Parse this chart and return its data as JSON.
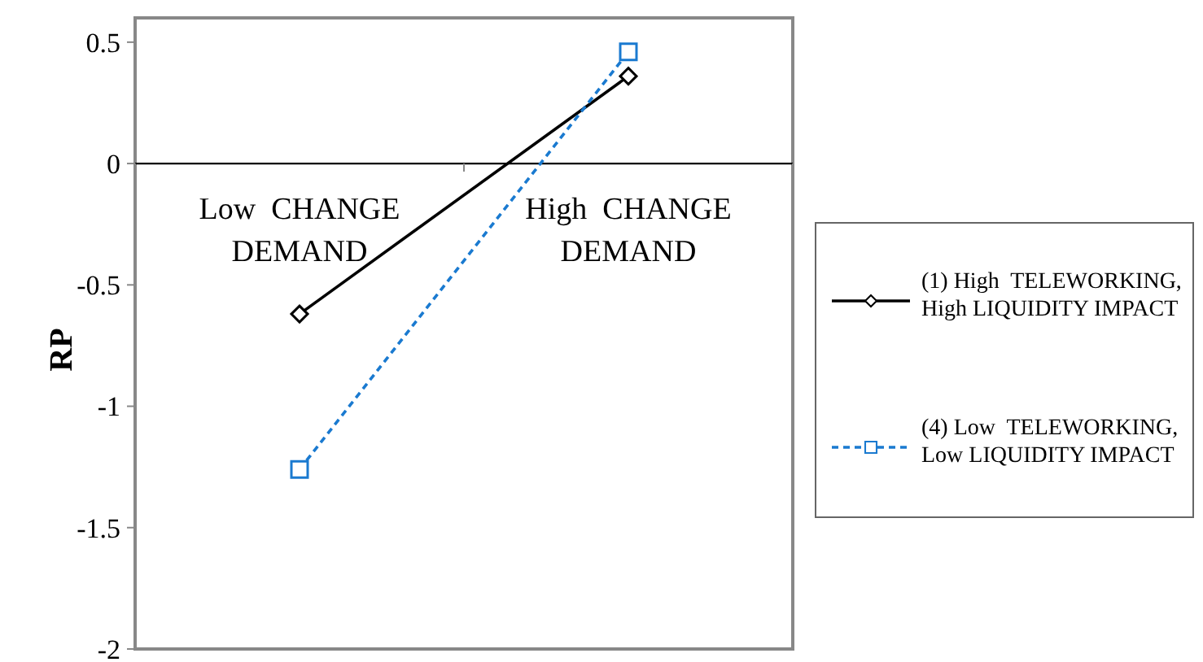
{
  "chart_data": {
    "type": "line",
    "ylabel": "RP",
    "categories": [
      "Low  CHANGE DEMAND",
      "High  CHANGE DEMAND"
    ],
    "series": [
      {
        "name": "(1) High  TELEWORKING, High LIQUIDITY IMPACT",
        "color": "#000000",
        "values": [
          -0.62,
          0.36
        ],
        "marker": "diamond",
        "line_style": "solid"
      },
      {
        "name": "(4) Low  TELEWORKING, Low LIQUIDITY IMPACT",
        "color": "#1a7ad0",
        "values": [
          -1.26,
          0.46
        ],
        "marker": "square",
        "line_style": "dashed"
      }
    ],
    "ylim": [
      -2,
      0.6
    ],
    "yticks": [
      0.5,
      0,
      -0.5,
      -1,
      -1.5,
      -2
    ],
    "grid": false,
    "legend": "right"
  }
}
